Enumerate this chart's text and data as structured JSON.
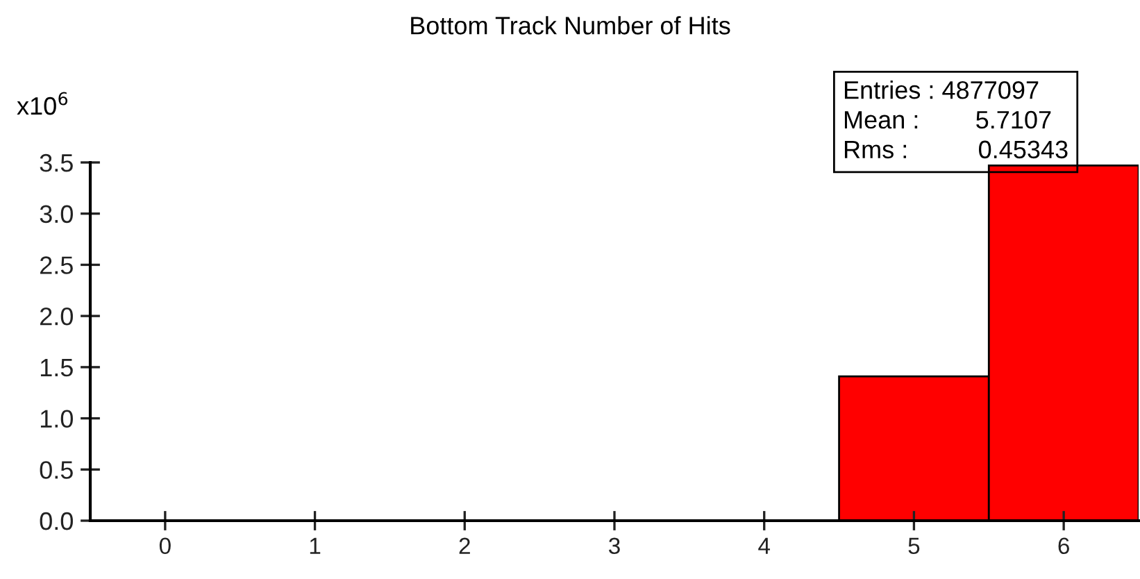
{
  "chart_data": {
    "type": "histogram",
    "title": "Bottom Track Number of Hits",
    "ylabel": "x10$^{6}$",
    "bins": [
      -0.5,
      0.5,
      1.5,
      2.5,
      3.5,
      4.5,
      5.5,
      6.5
    ],
    "values": [
      0,
      0,
      0,
      0,
      0,
      1.41,
      3.47
    ],
    "color": "#ff0000",
    "xlim": [
      -0.5,
      6.5
    ],
    "xticks": [
      0,
      1,
      2,
      3,
      4,
      5,
      6
    ],
    "ylim": [
      0,
      3.5
    ],
    "yticks": [
      {
        "value": 0,
        "label": "0.0"
      },
      0.5,
      {
        "value": 1,
        "label": "1.0"
      },
      1.5,
      {
        "value": 2,
        "label": "2.0"
      },
      2.5,
      {
        "value": 3,
        "label": "3.0"
      },
      3.5
    ],
    "grid": false,
    "legend": false,
    "annotations": [
      "Entries : 4877097",
      "Mean :        5.7107",
      "Rms :          0.45343"
    ]
  }
}
